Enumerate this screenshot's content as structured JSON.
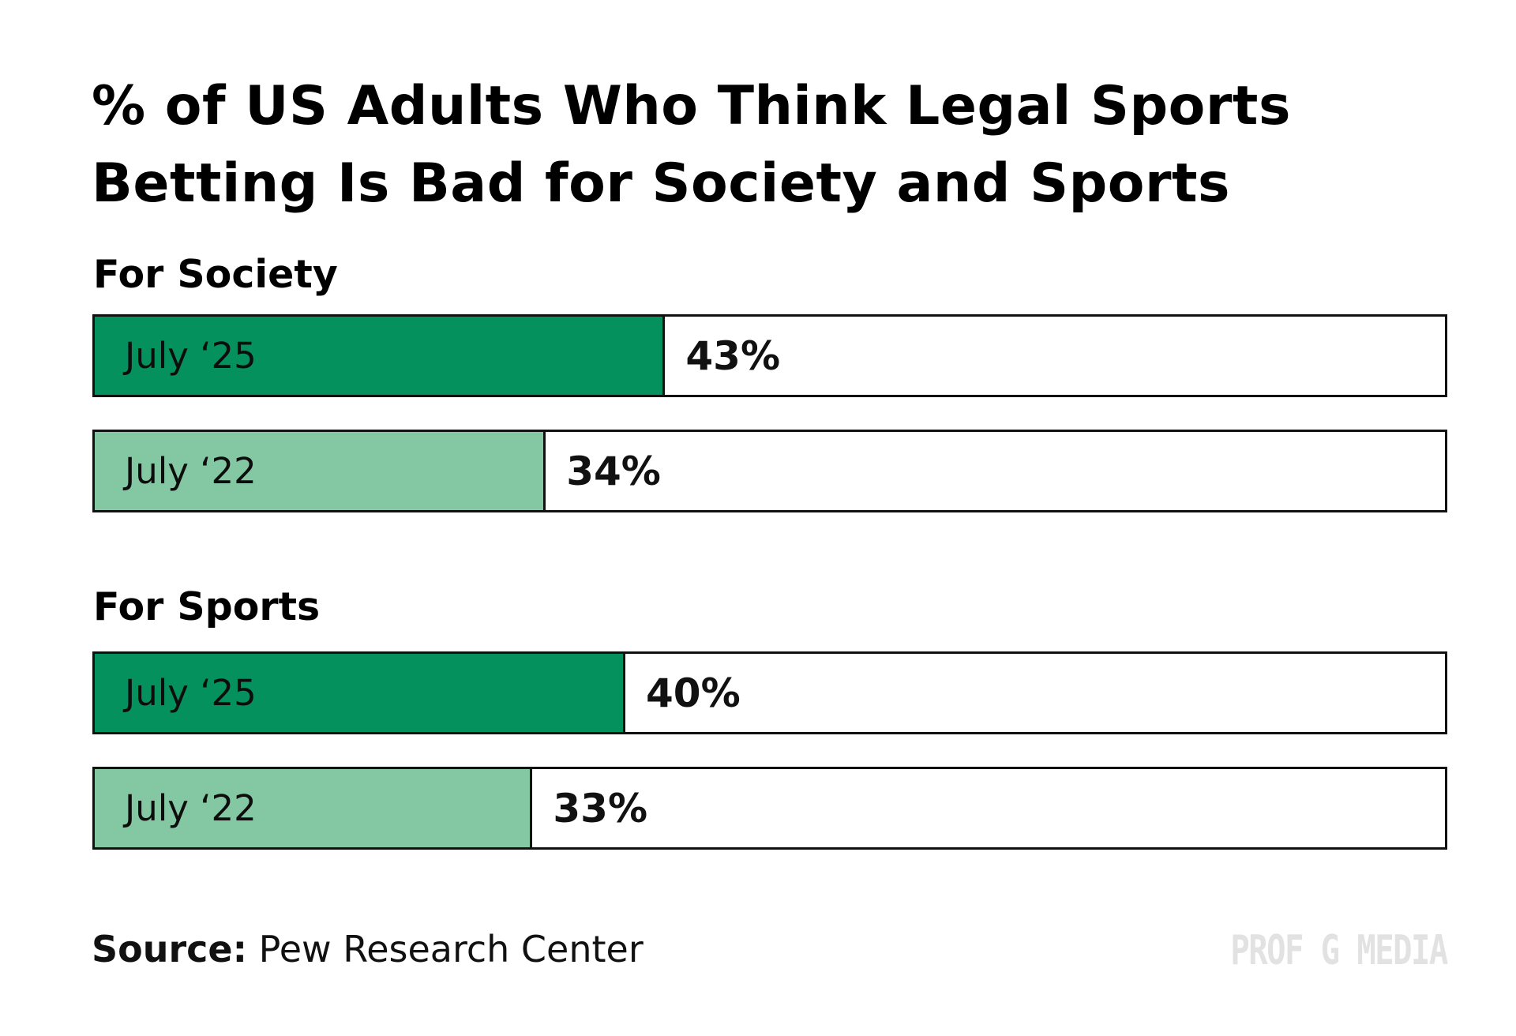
{
  "chart_data": {
    "type": "bar",
    "orientation": "horizontal",
    "title": "% of US Adults Who Think Legal Sports Betting Is Bad for Society and Sports",
    "xlim": [
      0,
      100
    ],
    "unit": "%",
    "groups": [
      {
        "name": "For Society",
        "bars": [
          {
            "label": "July ‘25",
            "value": 43,
            "value_label": "43%"
          },
          {
            "label": "July ‘22",
            "value": 34,
            "value_label": "34%"
          }
        ]
      },
      {
        "name": "For Sports",
        "bars": [
          {
            "label": "July ‘25",
            "value": 40,
            "value_label": "40%"
          },
          {
            "label": "July ‘22",
            "value": 33,
            "value_label": "33%"
          }
        ]
      }
    ],
    "colors": {
      "July ‘25": "#04915e",
      "July ‘22": "#84c7a3"
    }
  },
  "source": {
    "label": "Source:",
    "text": "Pew Research Center"
  },
  "brand": "PROF G MEDIA"
}
